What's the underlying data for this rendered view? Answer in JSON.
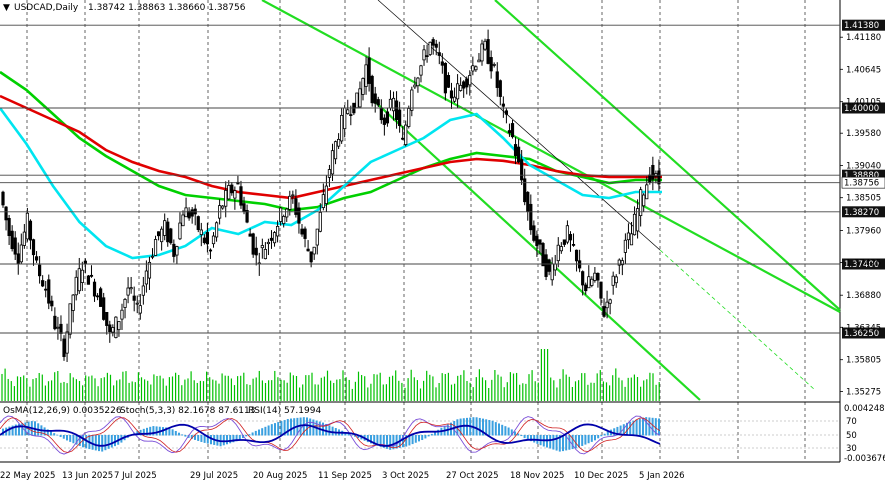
{
  "header": {
    "symbol": "USDCAD,Daily",
    "ohlc": "1.38742 1.38863 1.38660 1.38756",
    "indicators": {
      "osma": "OsMA(12,26,9) 0.0035226",
      "stoch": "Stoch(5,3,3) 82.1678 87.6113",
      "rsi": "RSI(14) 57.1994"
    }
  },
  "colors": {
    "background": "#ffffff",
    "candle": "#000000",
    "ma_red": "#e00000",
    "ma_green": "#00d000",
    "ma_cyan": "#00e5f0",
    "channel": "#22dd22",
    "grid": "#000000",
    "level_tag": "#111111",
    "volume": "#00c000",
    "hist_blue": "#3aa0e0",
    "osc_navy": "#0000aa",
    "osc_purple": "#7b4fd8",
    "osc_red": "#d02020"
  },
  "chart_data": {
    "type": "candlestick",
    "title": "USDCAD,Daily",
    "ylim": [
      1.351,
      1.418
    ],
    "price_ticks": [
      "1.41180",
      "1.40645",
      "1.40105",
      "1.39580",
      "1.39040",
      "1.38505",
      "1.37960",
      "1.37425",
      "1.36880",
      "1.36345",
      "1.35805",
      "1.35275"
    ],
    "price_tick_values": [
      1.4118,
      1.40645,
      1.40105,
      1.3958,
      1.3904,
      1.38505,
      1.3796,
      1.37425,
      1.3688,
      1.36345,
      1.35805,
      1.35275
    ],
    "date_labels": [
      "22 May 2025",
      "13 Jun 2025",
      "7 Jul 2025",
      "29 Jul 2025",
      "20 Aug 2025",
      "11 Sep 2025",
      "3 Oct 2025",
      "27 Oct 2025",
      "18 Nov 2025",
      "10 Dec 2025",
      "5 Jan 2026"
    ],
    "levels": [
      {
        "label": "1.41380",
        "value": 1.4138
      },
      {
        "label": "1.40000",
        "value": 1.4
      },
      {
        "label": "1.38880",
        "value": 1.3888
      },
      {
        "label": "1.38756",
        "value": 1.38756
      },
      {
        "label": "1.38270",
        "value": 1.3827
      },
      {
        "label": "1.37400",
        "value": 1.374
      },
      {
        "label": "1.36250",
        "value": 1.3625
      }
    ],
    "close_path": [
      1.386,
      1.379,
      1.3755,
      1.381,
      1.3735,
      1.37,
      1.364,
      1.36,
      1.369,
      1.374,
      1.371,
      1.368,
      1.362,
      1.365,
      1.37,
      1.366,
      1.373,
      1.378,
      1.38,
      1.376,
      1.383,
      1.382,
      1.379,
      1.376,
      1.383,
      1.386,
      1.387,
      1.3805,
      1.375,
      1.377,
      1.38,
      1.383,
      1.385,
      1.379,
      1.375,
      1.382,
      1.39,
      1.396,
      1.4,
      1.401,
      1.407,
      1.4,
      1.398,
      1.401,
      1.394,
      1.404,
      1.407,
      1.411,
      1.408,
      1.402,
      1.403,
      1.405,
      1.408,
      1.41,
      1.406,
      1.399,
      1.395,
      1.388,
      1.38,
      1.376,
      1.372,
      1.377,
      1.379,
      1.374,
      1.37,
      1.372,
      1.366,
      1.371,
      1.376,
      1.379,
      1.385,
      1.389,
      1.38756
    ],
    "ma_green": [
      1.406,
      1.403,
      1.399,
      1.395,
      1.392,
      1.3895,
      1.387,
      1.3855,
      1.385,
      1.3845,
      1.384,
      1.383,
      1.3835,
      1.385,
      1.386,
      1.388,
      1.39,
      1.3915,
      1.3925,
      1.392,
      1.3915,
      1.3895,
      1.3885,
      1.3875,
      1.388,
      1.388
    ],
    "ma_red": [
      1.402,
      1.4,
      1.398,
      1.396,
      1.393,
      1.391,
      1.3895,
      1.3885,
      1.387,
      1.386,
      1.3855,
      1.385,
      1.386,
      1.387,
      1.388,
      1.389,
      1.39,
      1.391,
      1.3915,
      1.3912,
      1.3905,
      1.3895,
      1.3888,
      1.3885,
      1.3885,
      1.3885
    ],
    "ma_cyan": [
      1.4,
      1.394,
      1.387,
      1.381,
      1.377,
      1.375,
      1.3755,
      1.377,
      1.38,
      1.379,
      1.381,
      1.3805,
      1.383,
      1.387,
      1.391,
      1.393,
      1.395,
      1.398,
      1.399,
      1.395,
      1.3905,
      1.388,
      1.3855,
      1.385,
      1.386,
      1.386
    ]
  },
  "oscillator": {
    "ticks": [
      "0.004248",
      "70",
      "50",
      "30",
      "-0.003676"
    ],
    "hist": [
      0.3,
      0.6,
      0.8,
      0.2,
      -0.3,
      -0.7,
      -0.9,
      -0.5,
      0.2,
      0.5,
      0.4,
      -0.1,
      -0.4,
      -0.6,
      -0.3,
      0.2,
      0.6,
      0.9,
      1.0,
      0.7,
      0.3,
      -0.1,
      -0.5,
      -0.8,
      -0.6,
      -0.2,
      0.4,
      0.9,
      1.0,
      0.8,
      0.4,
      -0.2,
      -0.6,
      -0.9,
      -0.7,
      -0.3,
      0.3,
      0.7,
      1.0,
      0.9
    ],
    "rsi": [
      0.5,
      0.55,
      0.45,
      0.4,
      0.35,
      0.45,
      0.55,
      0.6,
      0.5,
      0.45,
      0.4,
      0.5,
      0.55,
      0.65,
      0.6,
      0.5,
      0.45,
      0.55,
      0.6,
      0.65,
      0.55,
      0.45,
      0.4,
      0.35,
      0.45,
      0.55,
      0.6,
      0.58,
      0.57
    ]
  }
}
